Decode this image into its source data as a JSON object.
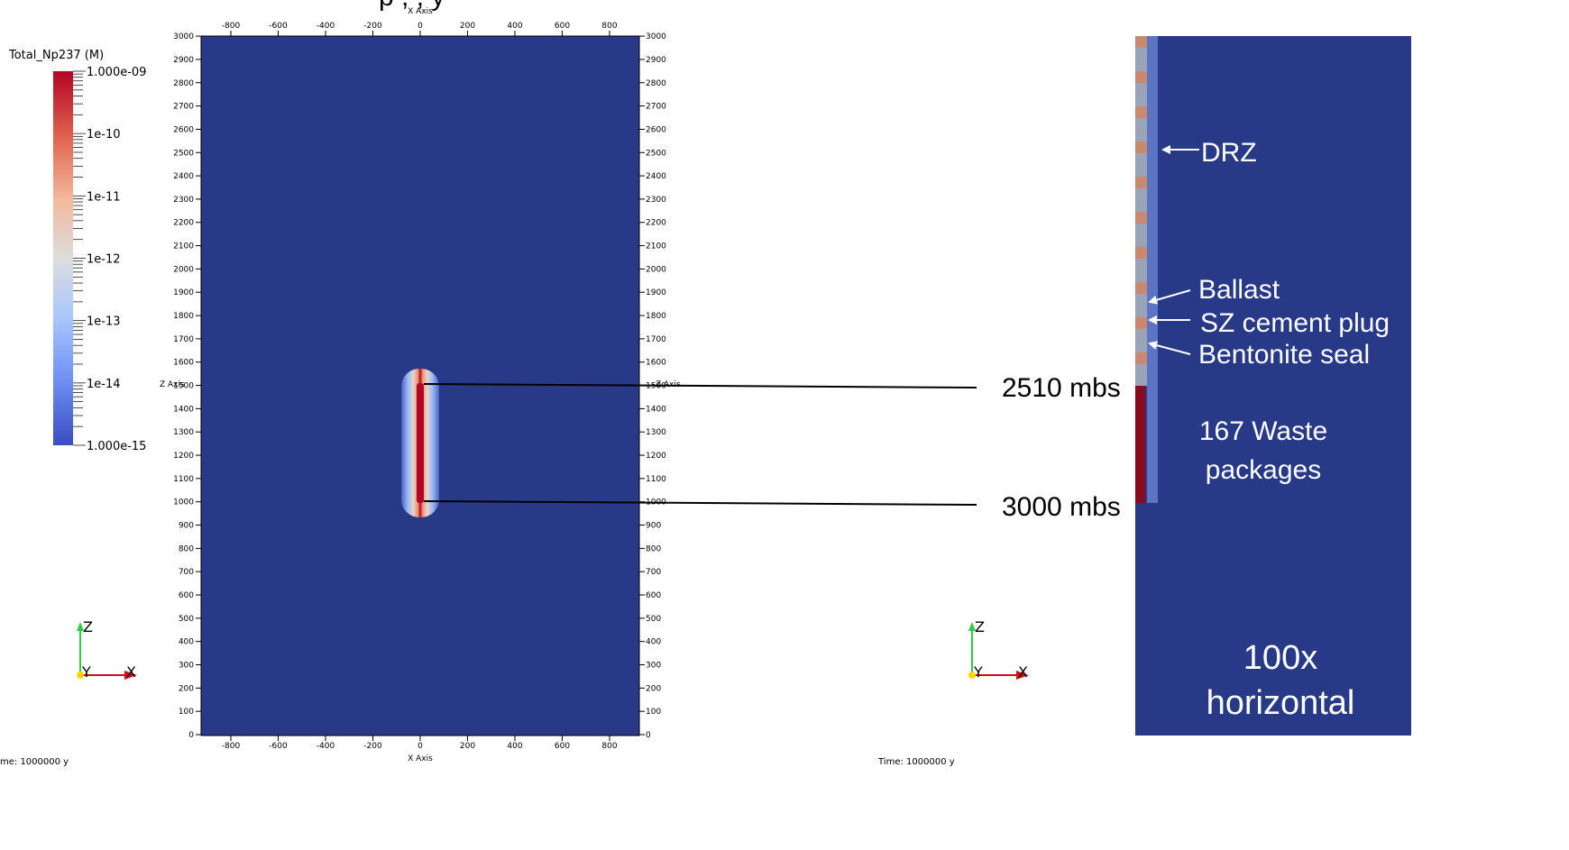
{
  "header_fragment": "p , , y",
  "colorbar": {
    "title": "Total_Np237 (M)",
    "labels": [
      "1.000e-09",
      "1e-10",
      "1e-11",
      "1e-12",
      "1e-13",
      "1e-14",
      "1.000e-15"
    ]
  },
  "axes": {
    "x_title": "X Axis",
    "z_title": "Z Axis",
    "x_ticks": [
      "-800",
      "-600",
      "-400",
      "-200",
      "0",
      "200",
      "400",
      "600",
      "800"
    ],
    "z_ticks": [
      "3000",
      "2900",
      "2800",
      "2700",
      "2600",
      "2500",
      "2400",
      "2300",
      "2200",
      "2100",
      "2000",
      "1900",
      "1800",
      "1700",
      "1600",
      "1500",
      "1400",
      "1300",
      "1200",
      "1100",
      "1000",
      "900",
      "800",
      "700",
      "600",
      "500",
      "400",
      "300",
      "200",
      "100",
      "0"
    ]
  },
  "orientation": {
    "z": "Z",
    "y": "Y",
    "x": "X"
  },
  "time_left": "me: 1000000 y",
  "time_right": "Time: 1000000 y",
  "depth_labels": {
    "top": "2510 mbs",
    "bottom": "3000 mbs"
  },
  "detail": {
    "drz": "DRZ",
    "ballast": "Ballast",
    "sz_plug": "SZ cement plug",
    "bentonite": "Bentonite seal",
    "waste_line1": "167 Waste",
    "waste_line2": "packages",
    "scale_line1": "100x",
    "scale_line2": "horizontal"
  },
  "colors": {
    "domain": "#273987",
    "plume_core": "#b40426",
    "drz_column": "#5b74c4",
    "waste_column": "#8c0a1e"
  }
}
